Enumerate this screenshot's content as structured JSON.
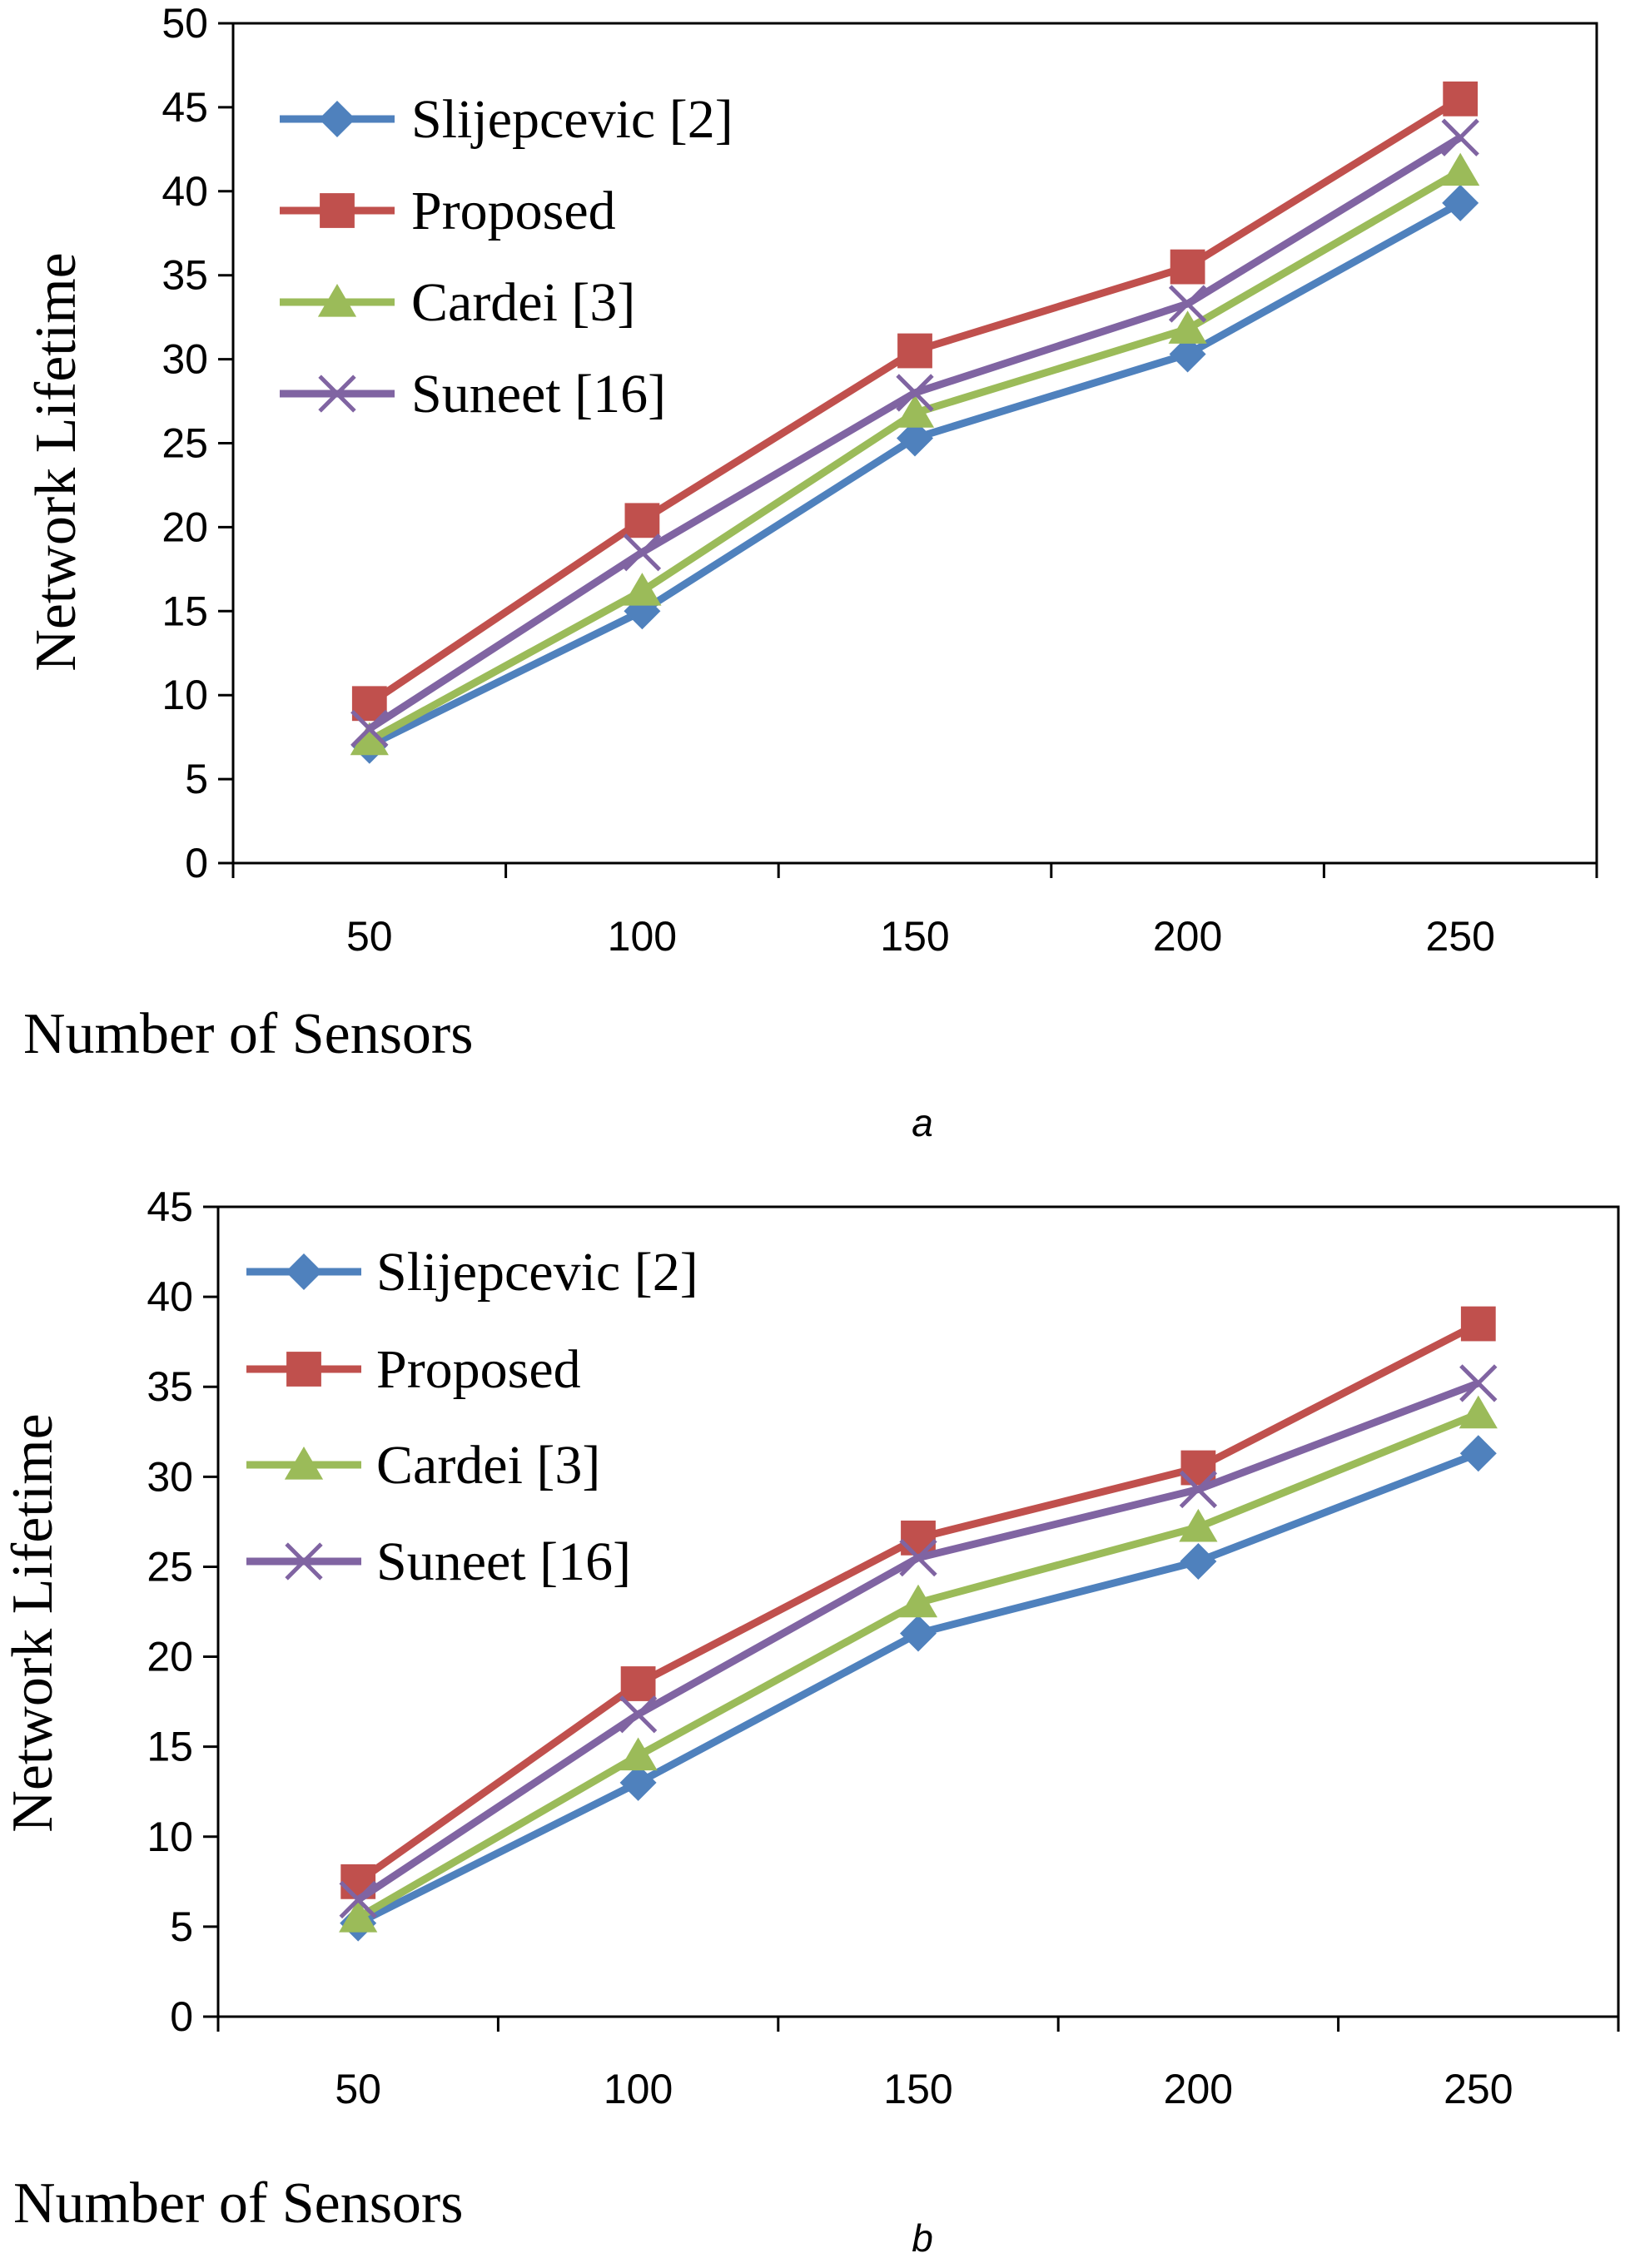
{
  "chart_data": [
    {
      "type": "line",
      "panel_label": "a",
      "xlabel": "Number of Sensors",
      "ylabel": "Network Lifetime",
      "categories": [
        "50",
        "100",
        "150",
        "200",
        "250"
      ],
      "ylim": [
        0,
        50
      ],
      "yticks": [
        "0",
        "5",
        "10",
        "15",
        "20",
        "25",
        "30",
        "35",
        "40",
        "45",
        "50"
      ],
      "grid": false,
      "legend_position": "top-left",
      "series": [
        {
          "name": "Slijepcevic [2]",
          "color": "#4F81BD",
          "marker": "diamond",
          "values": [
            7.0,
            15.0,
            25.3,
            30.3,
            39.3
          ]
        },
        {
          "name": "Proposed",
          "color": "#C0504D",
          "marker": "square",
          "values": [
            9.5,
            20.4,
            30.5,
            35.5,
            45.5
          ]
        },
        {
          "name": "Cardei [3]",
          "color": "#9BBB59",
          "marker": "triangle",
          "values": [
            7.3,
            16.2,
            26.8,
            31.8,
            41.2
          ]
        },
        {
          "name": "Suneet [16]",
          "color": "#8064A2",
          "marker": "x",
          "values": [
            8.0,
            18.5,
            28.0,
            33.3,
            43.2
          ]
        }
      ]
    },
    {
      "type": "line",
      "panel_label": "b",
      "xlabel": "Number of Sensors",
      "ylabel": "Network Lifetime",
      "categories": [
        "50",
        "100",
        "150",
        "200",
        "250"
      ],
      "ylim": [
        0,
        45
      ],
      "yticks": [
        "0",
        "5",
        "10",
        "15",
        "20",
        "25",
        "30",
        "35",
        "40",
        "45"
      ],
      "grid": false,
      "legend_position": "top-left",
      "series": [
        {
          "name": "Slijepcevic [2]",
          "color": "#4F81BD",
          "marker": "diamond",
          "values": [
            5.2,
            13.0,
            21.3,
            25.3,
            31.3
          ]
        },
        {
          "name": "Proposed",
          "color": "#C0504D",
          "marker": "square",
          "values": [
            7.5,
            18.5,
            26.6,
            30.5,
            38.5
          ]
        },
        {
          "name": "Cardei [3]",
          "color": "#9BBB59",
          "marker": "triangle",
          "values": [
            5.5,
            14.5,
            23.0,
            27.2,
            33.5
          ]
        },
        {
          "name": "Suneet [16]",
          "color": "#8064A2",
          "marker": "x",
          "values": [
            6.5,
            16.8,
            25.5,
            29.3,
            35.2
          ]
        }
      ]
    }
  ]
}
